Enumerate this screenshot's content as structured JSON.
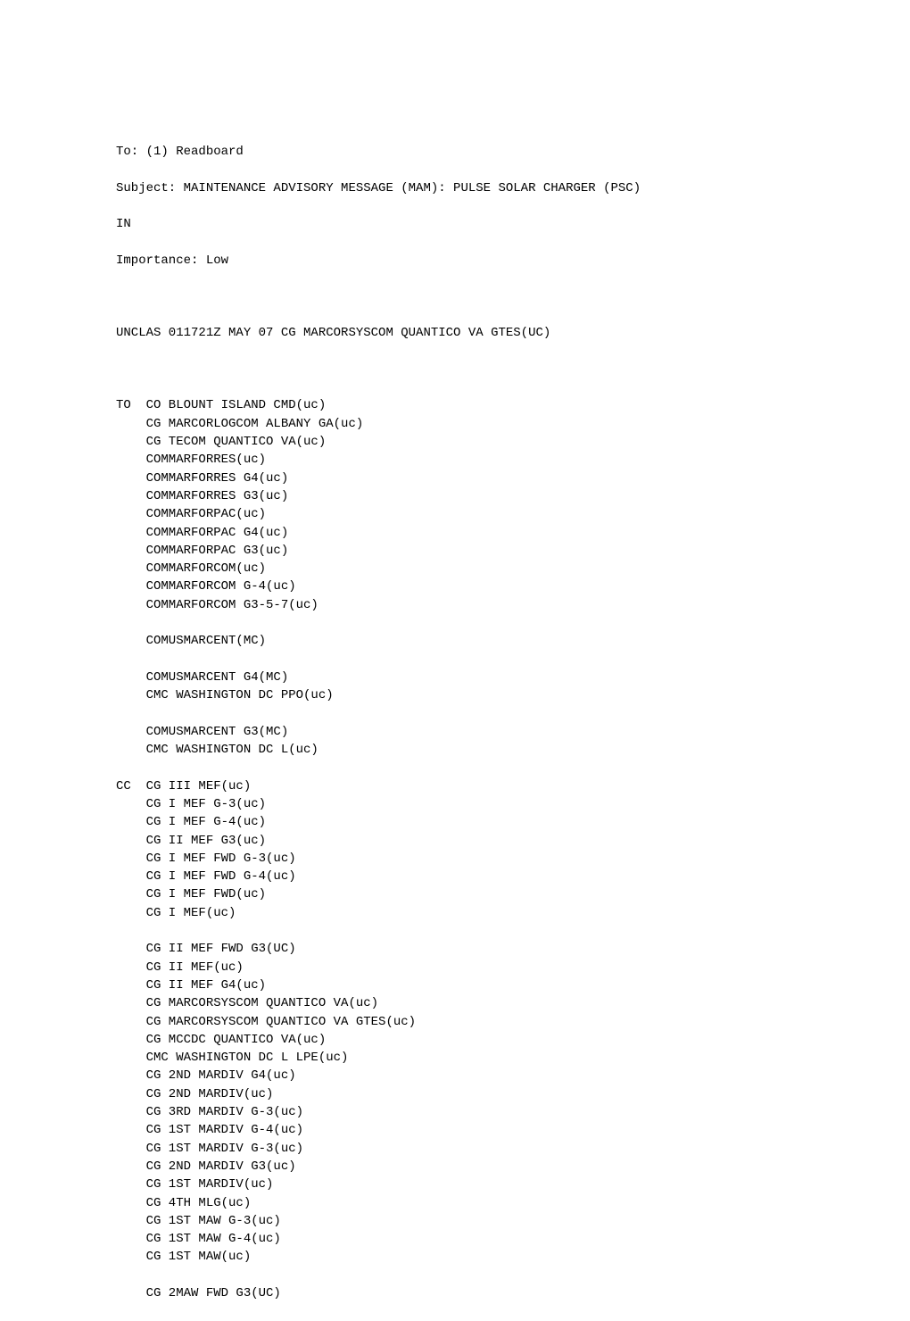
{
  "header": {
    "to": "To: (1) Readboard",
    "subject1": "Subject: MAINTENANCE ADVISORY MESSAGE (MAM): PULSE SOLAR CHARGER (PSC)",
    "subject2": "IN",
    "importance": "Importance: Low"
  },
  "classification": "UNCLAS 011721Z MAY 07 CG MARCORSYSCOM QUANTICO VA GTES(UC)",
  "to_block": {
    "prefix": "TO  ",
    "indent": "    ",
    "lines": [
      "CO BLOUNT ISLAND CMD(uc)",
      "CG MARCORLOGCOM ALBANY GA(uc)",
      "CG TECOM QUANTICO VA(uc)",
      "COMMARFORRES(uc)",
      "COMMARFORRES G4(uc)",
      "COMMARFORRES G3(uc)",
      "COMMARFORPAC(uc)",
      "COMMARFORPAC G4(uc)",
      "COMMARFORPAC G3(uc)",
      "COMMARFORCOM(uc)",
      "COMMARFORCOM G-4(uc)",
      "COMMARFORCOM G3-5-7(uc)",
      "",
      "COMUSMARCENT(MC)",
      "",
      "COMUSMARCENT G4(MC)",
      "CMC WASHINGTON DC PPO(uc)",
      "",
      "COMUSMARCENT G3(MC)",
      "CMC WASHINGTON DC L(uc)"
    ]
  },
  "cc_block": {
    "prefix": "CC  ",
    "indent": "    ",
    "lines": [
      "CG III MEF(uc)",
      "CG I MEF G-3(uc)",
      "CG I MEF G-4(uc)",
      "CG II MEF G3(uc)",
      "CG I MEF FWD G-3(uc)",
      "CG I MEF FWD G-4(uc)",
      "CG I MEF FWD(uc)",
      "CG I MEF(uc)",
      "",
      "CG II MEF FWD G3(UC)",
      "CG II MEF(uc)",
      "CG II MEF G4(uc)",
      "CG MARCORSYSCOM QUANTICO VA(uc)",
      "CG MARCORSYSCOM QUANTICO VA GTES(uc)",
      "CG MCCDC QUANTICO VA(uc)",
      "CMC WASHINGTON DC L LPE(uc)",
      "CG 2ND MARDIV G4(uc)",
      "CG 2ND MARDIV(uc)",
      "CG 3RD MARDIV G-3(uc)",
      "CG 1ST MARDIV G-4(uc)",
      "CG 1ST MARDIV G-3(uc)",
      "CG 2ND MARDIV G3(uc)",
      "CG 1ST MARDIV(uc)",
      "CG 4TH MLG(uc)",
      "CG 1ST MAW G-3(uc)",
      "CG 1ST MAW G-4(uc)",
      "CG 1ST MAW(uc)",
      "",
      "CG 2MAW FWD G3(UC)"
    ]
  }
}
